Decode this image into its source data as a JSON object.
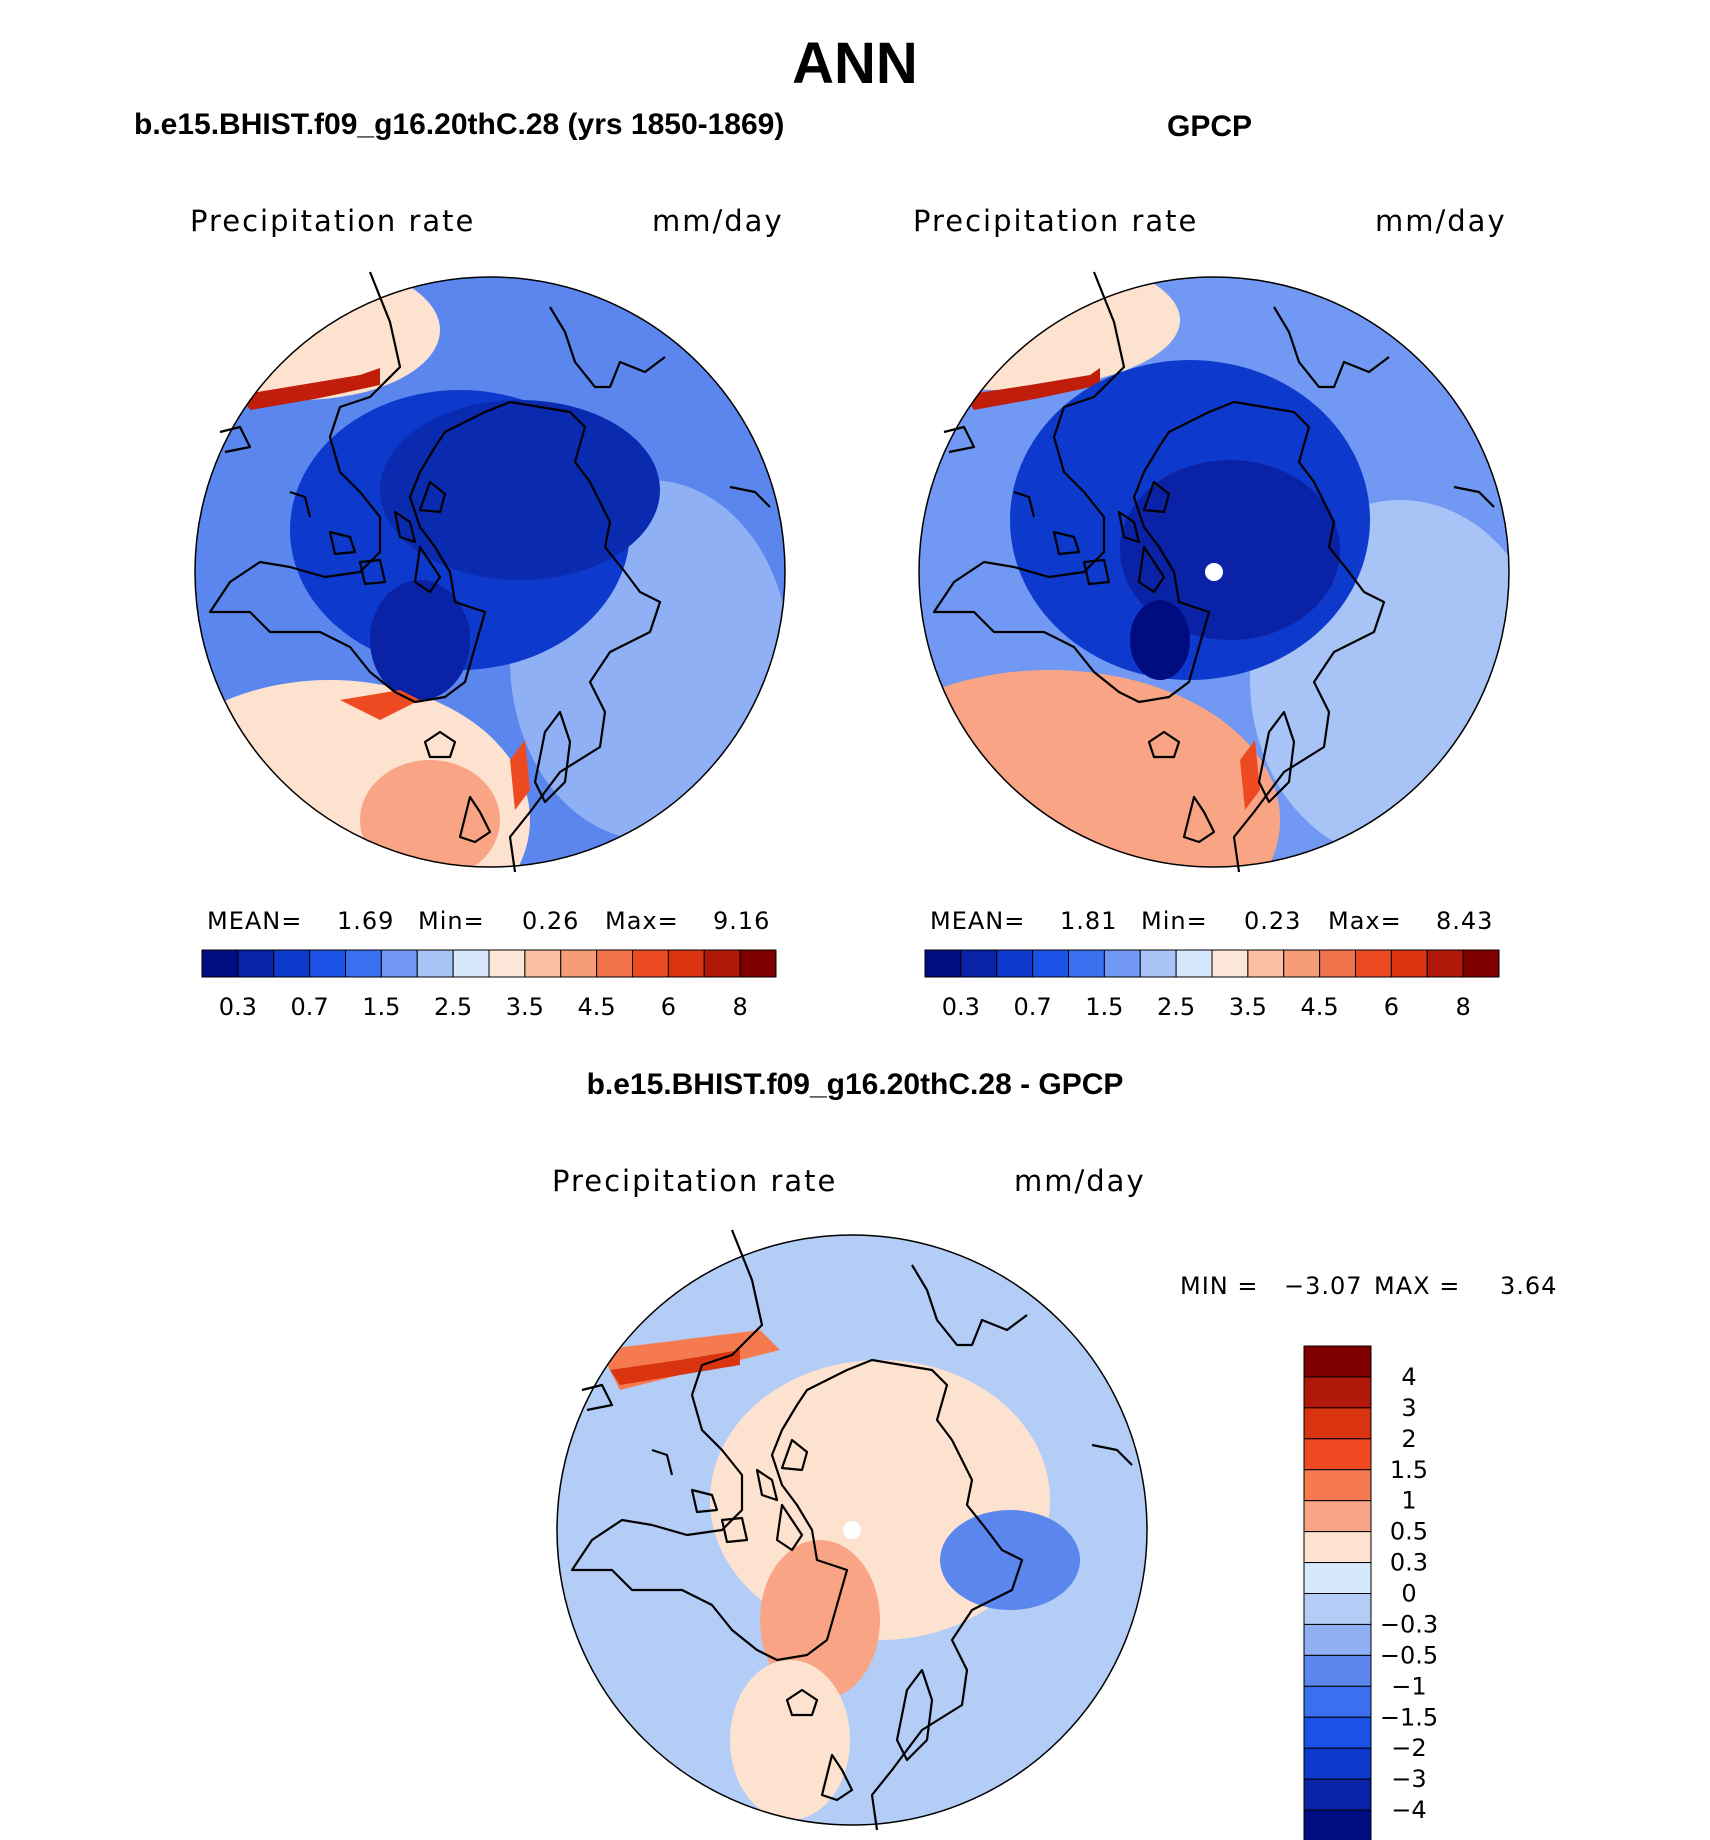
{
  "title": "ANN",
  "panels": [
    {
      "id": "model",
      "title": "b.e15.BHIST.f09_g16.20thC.28 (yrs 1850-1869)",
      "variable": "Precipitation rate",
      "units": "mm/day",
      "stats": {
        "mean_label": "MEAN=",
        "mean": "1.69",
        "min_label": "Min=",
        "min": "0.26",
        "max_label": "Max=",
        "max": "9.16"
      }
    },
    {
      "id": "obs",
      "title": "GPCP",
      "variable": "Precipitation rate",
      "units": "mm/day",
      "stats": {
        "mean_label": "MEAN=",
        "mean": "1.81",
        "min_label": "Min=",
        "min": "0.23",
        "max_label": "Max=",
        "max": "8.43"
      }
    },
    {
      "id": "diff",
      "title": "b.e15.BHIST.f09_g16.20thC.28 - GPCP",
      "variable": "Precipitation rate",
      "units": "mm/day",
      "stats": {
        "min_label": "MIN =",
        "min": "−3.07",
        "max_label": "MAX =",
        "max": "3.64"
      }
    }
  ],
  "abs_colorbar": {
    "colors": [
      "#000d80",
      "#0a22a6",
      "#0d39cc",
      "#1a52e6",
      "#3a6ff0",
      "#7198f2",
      "#a8c4f7",
      "#d6e8fc",
      "#fce6d8",
      "#fbc0a3",
      "#f59c78",
      "#f0724a",
      "#ee4a22",
      "#d93310",
      "#b0190a",
      "#800000"
    ],
    "tick_labels": [
      "0.3",
      "0.7",
      "1.5",
      "2.5",
      "3.5",
      "4.5",
      "6",
      "8"
    ]
  },
  "diff_colorbar": {
    "colors": [
      "#800000",
      "#b0190a",
      "#d93310",
      "#f04a22",
      "#f57a4f",
      "#f9a585",
      "#fde2d0",
      "#d6e8fc",
      "#b3cdf7",
      "#8fb0f4",
      "#5a86ed",
      "#3a6ff0",
      "#1a52e6",
      "#0d39cc",
      "#0a22a6",
      "#000d80"
    ],
    "tick_labels": [
      "4",
      "3",
      "2",
      "1.5",
      "1",
      "0.5",
      "0.3",
      "0",
      "−0.3",
      "−0.5",
      "−1",
      "−1.5",
      "−2",
      "−3",
      "−4"
    ]
  }
}
